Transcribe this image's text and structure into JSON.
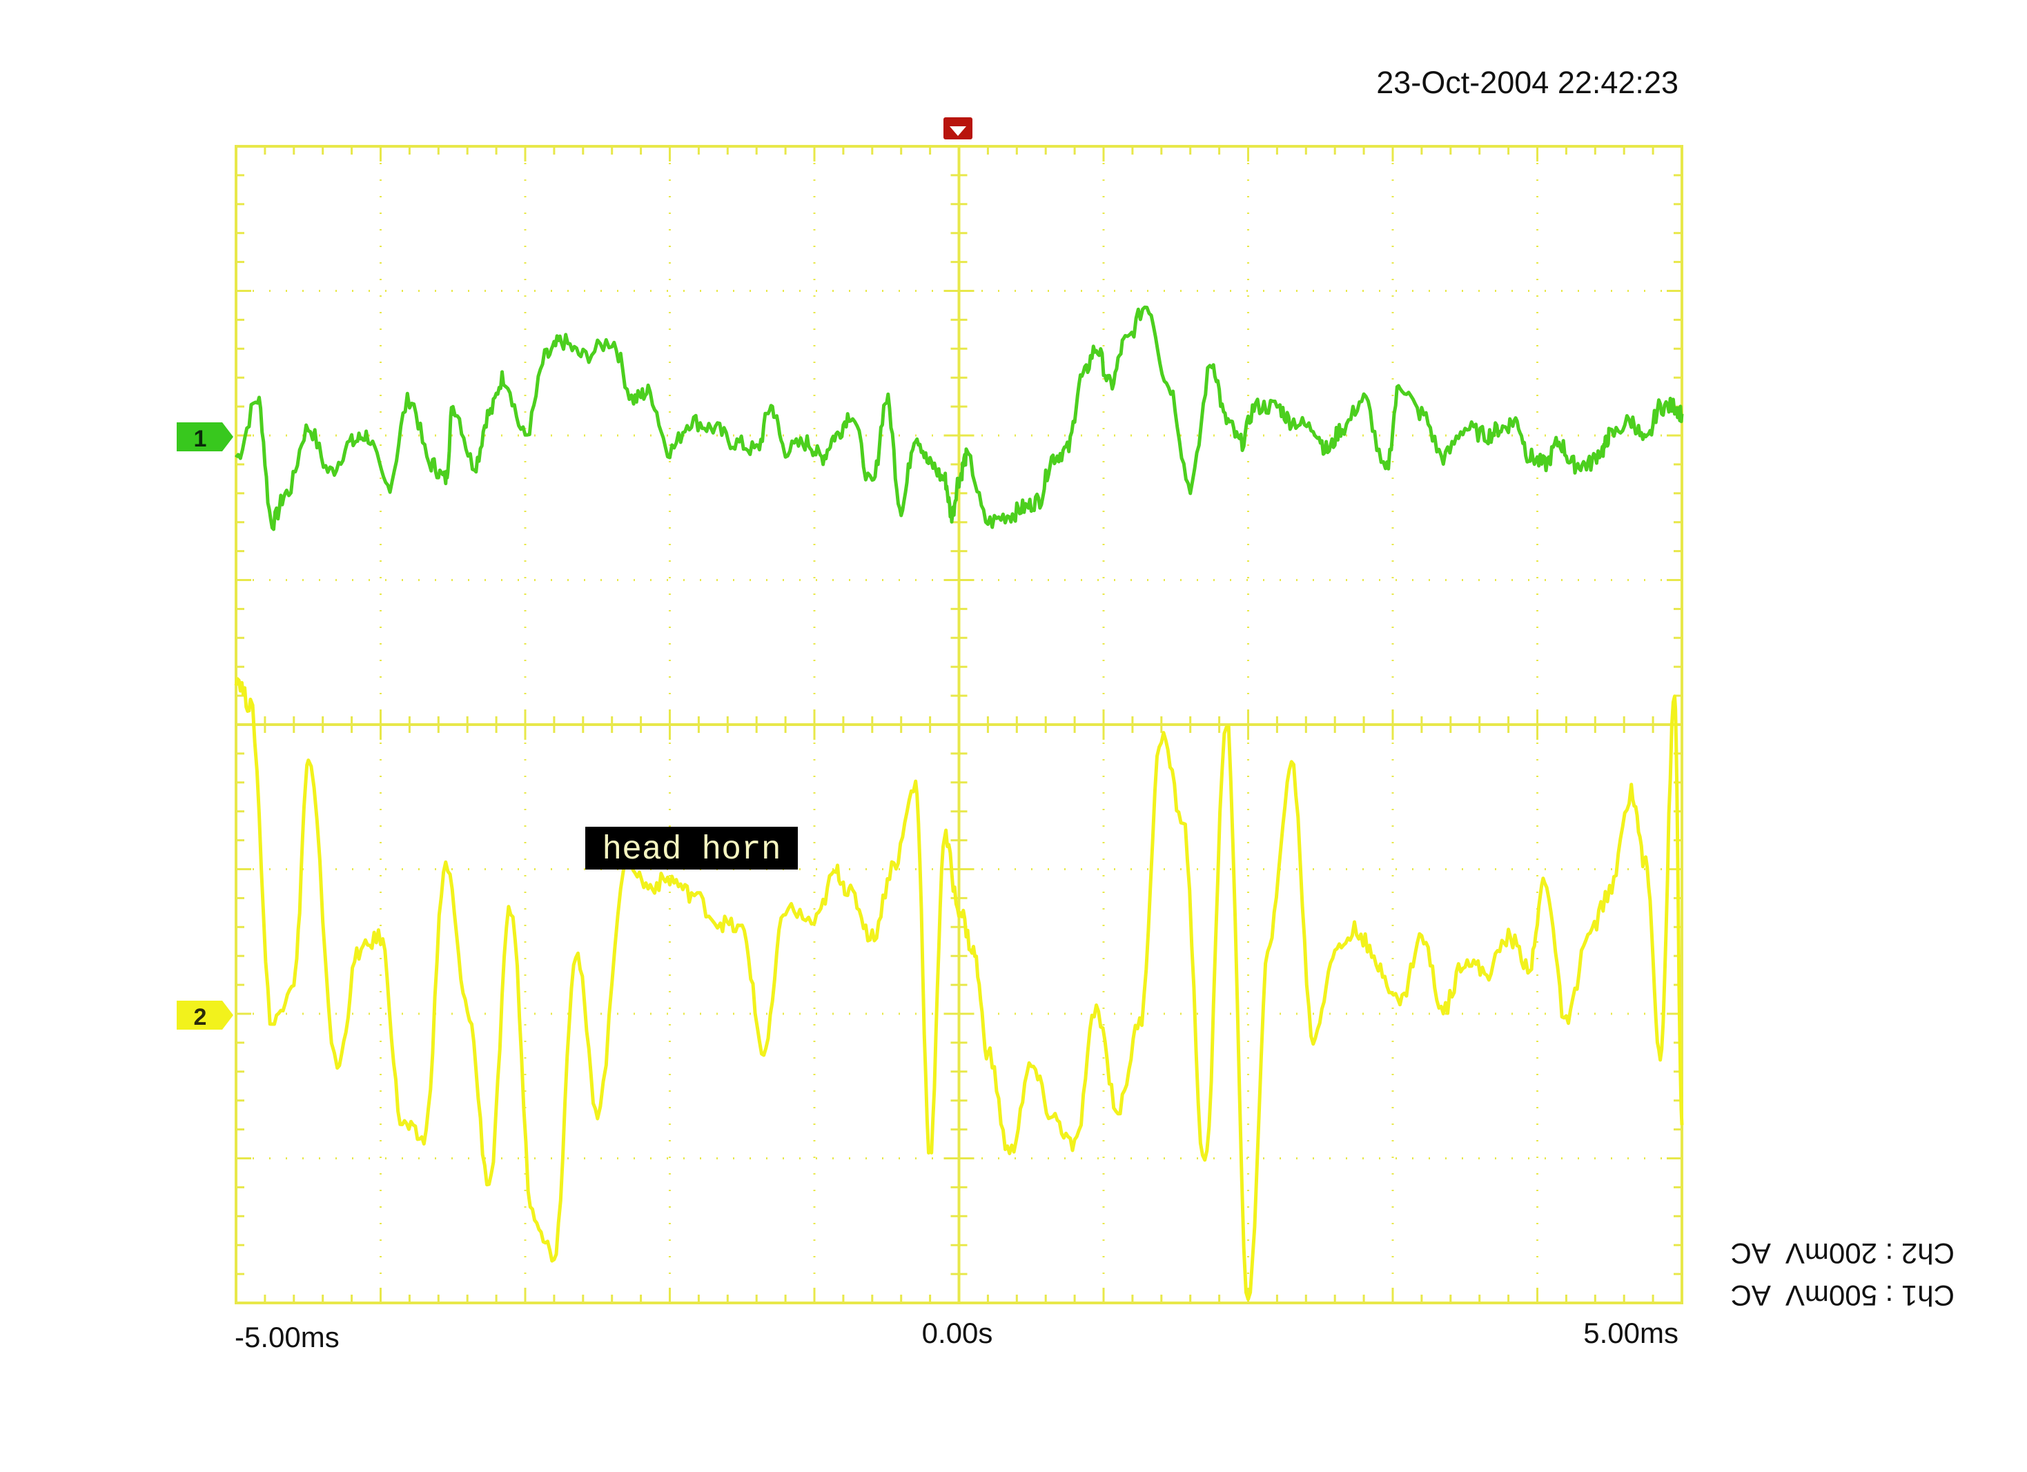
{
  "timestamp": "23-Oct-2004 22:42:23",
  "annotation": "head horn",
  "time_labels": {
    "left": "-5.00ms",
    "center": "0.00s",
    "right": "5.00ms"
  },
  "channel_settings": {
    "ch2": "Ch2 : 200mV  AC",
    "ch1": "Ch1 : 500mV  AC"
  },
  "colors": {
    "background": "#ffffff",
    "grid": "#e8e84a",
    "ch1": "#4ccf1e",
    "ch2": "#f2f21c",
    "trigger": "#b8140c",
    "annotation_bg": "#000000",
    "annotation_text": "#f5f5c0"
  },
  "chart_data": {
    "type": "line",
    "title": "",
    "xlabel": "",
    "ylabel": "",
    "x_unit": "ms",
    "xlim": [
      -5,
      5
    ],
    "ylim_divisions": [
      -4,
      4
    ],
    "grid": true,
    "divisions": {
      "x": 10,
      "y": 8
    },
    "series": [
      {
        "name": "1",
        "marker_label": "1",
        "color": "#4ccf1e",
        "x": [
          -5.0,
          -4.85,
          -4.75,
          -4.65,
          -4.5,
          -4.35,
          -4.2,
          -4.1,
          -3.95,
          -3.8,
          -3.65,
          -3.55,
          -3.5,
          -3.35,
          -3.25,
          -3.15,
          -3.0,
          -2.85,
          -2.75,
          -2.6,
          -2.4,
          -2.25,
          -2.15,
          -2.0,
          -1.85,
          -1.7,
          -1.55,
          -1.4,
          -1.3,
          -1.2,
          -1.05,
          -0.95,
          -0.85,
          -0.75,
          -0.6,
          -0.5,
          -0.4,
          -0.3,
          -0.2,
          -0.1,
          -0.05,
          0.0,
          0.05,
          0.2,
          0.35,
          0.45,
          0.55,
          0.65,
          0.75,
          0.85,
          0.95,
          1.05,
          1.15,
          1.3,
          1.45,
          1.6,
          1.75,
          1.85,
          1.95,
          2.05,
          2.2,
          2.3,
          2.45,
          2.55,
          2.65,
          2.8,
          2.95,
          3.05,
          3.2,
          3.35,
          3.5,
          3.65,
          3.75,
          3.85,
          3.95,
          4.05,
          4.15,
          4.25,
          4.35,
          4.45,
          4.5,
          4.65,
          4.75,
          4.85,
          4.95,
          5.0
        ],
        "y": [
          -0.15,
          0.25,
          -0.6,
          -0.4,
          0.05,
          -0.25,
          -0.05,
          0.0,
          -0.35,
          0.25,
          -0.2,
          -0.3,
          0.2,
          -0.2,
          0.15,
          0.4,
          0.0,
          0.55,
          0.65,
          0.55,
          0.65,
          0.25,
          0.3,
          -0.1,
          0.1,
          0.05,
          -0.05,
          -0.1,
          0.2,
          -0.1,
          -0.05,
          -0.15,
          0.0,
          0.15,
          -0.35,
          0.25,
          -0.5,
          0.0,
          -0.2,
          -0.3,
          -0.55,
          -0.3,
          -0.15,
          -0.6,
          -0.55,
          -0.5,
          -0.45,
          -0.15,
          -0.1,
          0.4,
          0.6,
          0.35,
          0.65,
          0.9,
          0.35,
          -0.35,
          0.5,
          0.1,
          -0.05,
          0.2,
          0.2,
          0.1,
          0.05,
          -0.1,
          0.05,
          0.25,
          -0.25,
          0.35,
          0.15,
          -0.15,
          0.05,
          0.0,
          0.05,
          0.1,
          -0.15,
          -0.2,
          -0.05,
          -0.2,
          -0.2,
          -0.1,
          0.0,
          0.1,
          -0.05,
          0.2,
          0.2,
          0.15
        ],
        "y_peaks_divisions": {
          "max": 1.3,
          "min": -0.85
        }
      },
      {
        "name": "2",
        "marker_label": "2",
        "color": "#f2f21c",
        "x": [
          -5.0,
          -4.9,
          -4.75,
          -4.6,
          -4.5,
          -4.3,
          -4.15,
          -4.0,
          -3.85,
          -3.7,
          -3.55,
          -3.4,
          -3.25,
          -3.1,
          -2.95,
          -2.8,
          -2.65,
          -2.5,
          -2.3,
          -2.15,
          -2.0,
          -1.85,
          -1.65,
          -1.5,
          -1.35,
          -1.2,
          -1.0,
          -0.85,
          -0.75,
          -0.6,
          -0.45,
          -0.3,
          -0.2,
          -0.1,
          0.0,
          0.1,
          0.2,
          0.35,
          0.5,
          0.65,
          0.8,
          0.95,
          1.1,
          1.25,
          1.4,
          1.55,
          1.7,
          1.85,
          2.0,
          2.15,
          2.3,
          2.45,
          2.6,
          2.75,
          2.9,
          3.05,
          3.2,
          3.35,
          3.5,
          3.65,
          3.8,
          3.95,
          4.05,
          4.2,
          4.35,
          4.5,
          4.65,
          4.75,
          4.85,
          4.95,
          5.0
        ],
        "y": [
          2.1,
          1.9,
          -0.3,
          0.0,
          1.5,
          -0.6,
          0.2,
          0.3,
          -1.0,
          -1.1,
          0.8,
          -0.2,
          -1.4,
          0.5,
          -1.6,
          -1.9,
          0.2,
          -0.9,
          0.85,
          0.65,
          0.7,
          0.6,
          0.4,
          0.35,
          -0.5,
          0.5,
          0.4,
          0.75,
          0.6,
          0.3,
          0.8,
          1.35,
          -1.2,
          1.0,
          0.5,
          0.2,
          -0.5,
          -1.2,
          -0.6,
          -0.95,
          -1.15,
          -0.2,
          -0.9,
          -0.3,
          1.7,
          1.1,
          -1.3,
          1.8,
          -2.2,
          0.3,
          1.5,
          -0.4,
          0.2,
          0.35,
          0.1,
          -0.15,
          0.3,
          -0.2,
          0.15,
          0.05,
          0.3,
          0.1,
          0.7,
          -0.3,
          0.3,
          0.6,
          1.3,
          0.8,
          -0.5,
          1.95,
          -1.0
        ],
        "y_peaks_divisions": {
          "max": 2.4,
          "min": -2.6
        }
      }
    ]
  }
}
